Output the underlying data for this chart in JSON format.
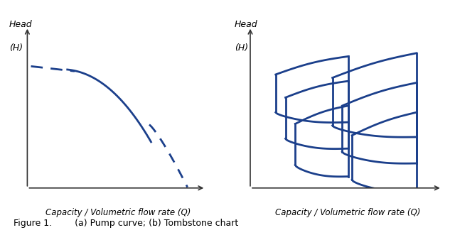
{
  "blue_color": "#1B3F8B",
  "line_width": 2.0,
  "fig_width": 6.4,
  "fig_height": 3.31,
  "xlabel": "Capacity / Volumetric flow rate (Q)",
  "ylabel_line1": "Head",
  "ylabel_line2": "(H)",
  "figure_caption": "Figure 1.        (a) Pump curve; (b) Tombstone chart",
  "caption_fontsize": 9,
  "axis_label_fontsize": 8.5,
  "ylabel_fontsize": 9
}
